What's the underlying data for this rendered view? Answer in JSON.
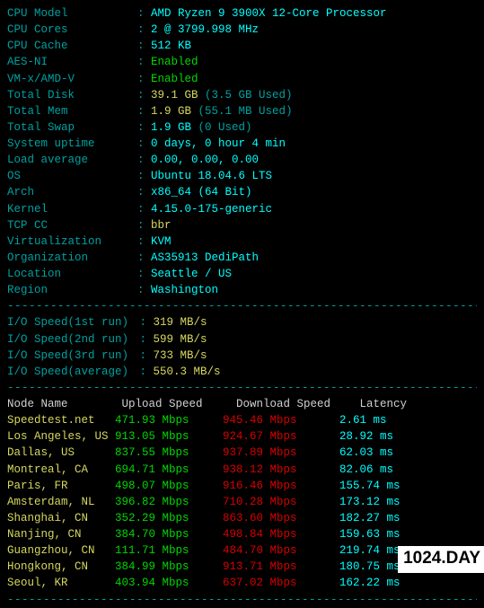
{
  "system": [
    {
      "label": "CPU Model",
      "value": "AMD Ryzen 9 3900X 12-Core Processor",
      "cls": "val-cyan"
    },
    {
      "label": "CPU Cores",
      "value": "2 @ 3799.998 MHz",
      "cls": "val-cyan"
    },
    {
      "label": "CPU Cache",
      "value": "512 KB",
      "cls": "val-cyan"
    },
    {
      "label": "AES-NI",
      "value": "Enabled",
      "cls": "val-green"
    },
    {
      "label": "VM-x/AMD-V",
      "value": "Enabled",
      "cls": "val-green"
    },
    {
      "label": "Total Disk",
      "value": "39.1 GB",
      "cls": "val-yellow",
      "paren": "(3.5 GB Used)"
    },
    {
      "label": "Total Mem",
      "value": "1.9 GB",
      "cls": "val-yellow",
      "paren": "(55.1 MB Used)"
    },
    {
      "label": "Total Swap",
      "value": "1.9 GB",
      "cls": "val-cyan",
      "paren": "(0 Used)"
    },
    {
      "label": "System uptime",
      "value": "0 days, 0 hour 4 min",
      "cls": "val-cyan"
    },
    {
      "label": "Load average",
      "value": "0.00, 0.00, 0.00",
      "cls": "val-cyan"
    },
    {
      "label": "OS",
      "value": "Ubuntu 18.04.6 LTS",
      "cls": "val-cyan"
    },
    {
      "label": "Arch",
      "value": "x86_64 (64 Bit)",
      "cls": "val-cyan"
    },
    {
      "label": "Kernel",
      "value": "4.15.0-175-generic",
      "cls": "val-cyan"
    },
    {
      "label": "TCP CC",
      "value": "bbr",
      "cls": "val-yellow"
    },
    {
      "label": "Virtualization",
      "value": "KVM",
      "cls": "val-cyan"
    },
    {
      "label": "Organization",
      "value": "AS35913 DediPath",
      "cls": "val-cyan"
    },
    {
      "label": "Location",
      "value": "Seattle / US",
      "cls": "val-cyan"
    },
    {
      "label": "Region",
      "value": "Washington",
      "cls": "val-cyan"
    }
  ],
  "io": [
    {
      "label": "I/O Speed(1st run)",
      "value": "319 MB/s"
    },
    {
      "label": "I/O Speed(2nd run)",
      "value": "599 MB/s"
    },
    {
      "label": "I/O Speed(3rd run)",
      "value": "733 MB/s"
    },
    {
      "label": "I/O Speed(average)",
      "value": "550.3 MB/s"
    }
  ],
  "headers": {
    "c1": "Node Name",
    "c2": "Upload Speed",
    "c3": "Download Speed",
    "c4": "Latency"
  },
  "speedtest": [
    {
      "name": "Speedtest.net",
      "up": "471.93 Mbps",
      "down": "945.46 Mbps",
      "lat": "2.61 ms"
    },
    {
      "name": "Los Angeles, US",
      "up": "913.05 Mbps",
      "down": "924.67 Mbps",
      "lat": "28.92 ms"
    },
    {
      "name": "Dallas, US",
      "up": "837.55 Mbps",
      "down": "937.89 Mbps",
      "lat": "62.03 ms"
    },
    {
      "name": "Montreal, CA",
      "up": "694.71 Mbps",
      "down": "938.12 Mbps",
      "lat": "82.06 ms"
    },
    {
      "name": "Paris, FR",
      "up": "498.07 Mbps",
      "down": "916.46 Mbps",
      "lat": "155.74 ms"
    },
    {
      "name": "Amsterdam, NL",
      "up": "396.82 Mbps",
      "down": "710.28 Mbps",
      "lat": "173.12 ms"
    },
    {
      "name": "Shanghai, CN",
      "up": "352.29 Mbps",
      "down": "863.60 Mbps",
      "lat": "182.27 ms"
    },
    {
      "name": "Nanjing, CN",
      "up": "384.70 Mbps",
      "down": "498.84 Mbps",
      "lat": "159.63 ms"
    },
    {
      "name": "Guangzhou, CN",
      "up": "111.71 Mbps",
      "down": "484.70 Mbps",
      "lat": "219.74 ms"
    },
    {
      "name": "Hongkong, CN",
      "up": "384.99 Mbps",
      "down": "913.71 Mbps",
      "lat": "180.75 ms"
    },
    {
      "name": "Seoul, KR",
      "up": "403.94 Mbps",
      "down": "637.02 Mbps",
      "lat": "162.22 ms"
    }
  ],
  "watermark": "1024.DAY",
  "divider": "----------------------------------------------------------------------"
}
